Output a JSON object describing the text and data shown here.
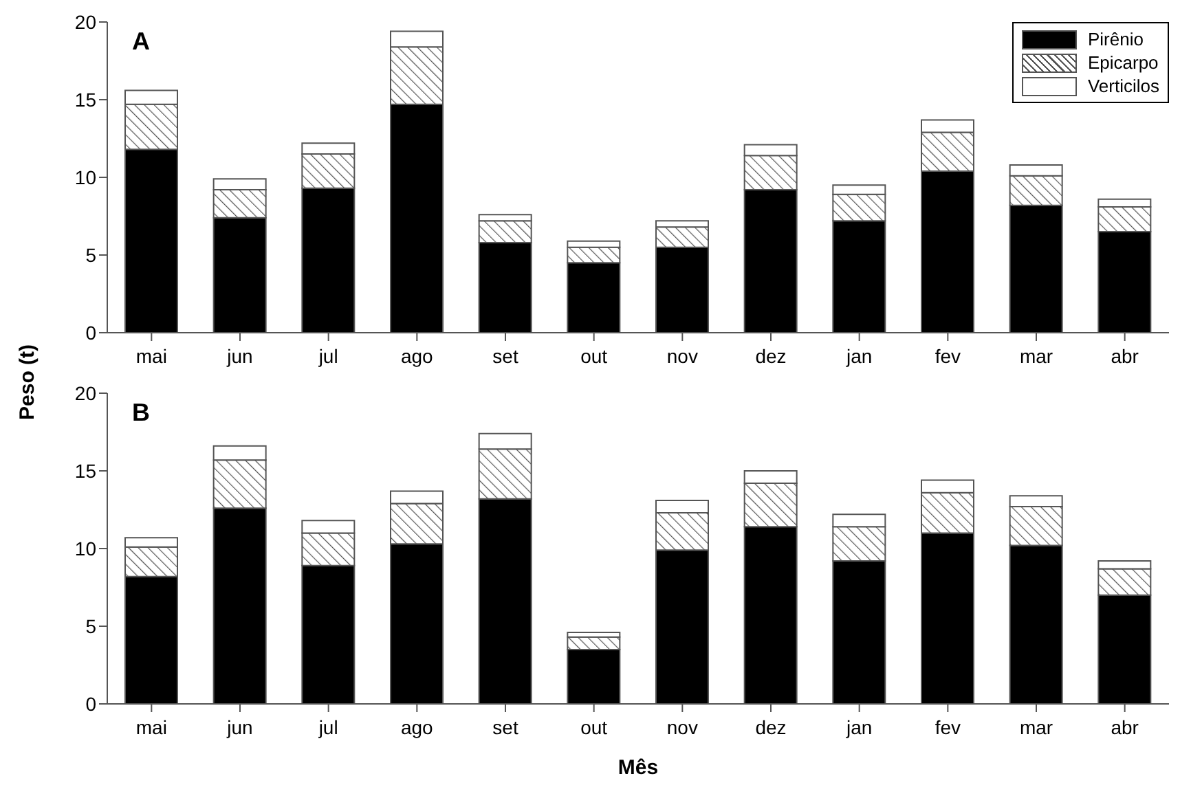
{
  "chart_data": [
    {
      "type": "bar",
      "title": "A",
      "ylabel": "Peso (t)",
      "categories": [
        "mai",
        "jun",
        "jul",
        "ago",
        "set",
        "out",
        "nov",
        "dez",
        "jan",
        "fev",
        "mar",
        "abr"
      ],
      "stacked": true,
      "legend": "top right",
      "ylim": [
        0,
        20
      ],
      "yticks": [
        0,
        5,
        10,
        15,
        20
      ],
      "grid": false,
      "series": [
        {
          "name": "Pirênio",
          "color": "#000000",
          "values": [
            11.8,
            7.4,
            9.3,
            14.7,
            5.8,
            4.5,
            5.5,
            9.2,
            7.2,
            10.4,
            8.2,
            6.5
          ]
        },
        {
          "name": "Epicarpo",
          "color": "#555555",
          "values": [
            2.9,
            1.8,
            2.2,
            3.7,
            1.4,
            1.0,
            1.3,
            2.2,
            1.7,
            2.5,
            1.9,
            1.6
          ]
        },
        {
          "name": "Verticilos",
          "color": "#ffffff",
          "values": [
            0.9,
            0.7,
            0.7,
            1.0,
            0.4,
            0.4,
            0.4,
            0.7,
            0.6,
            0.8,
            0.7,
            0.5
          ]
        }
      ]
    },
    {
      "type": "bar",
      "title": "B",
      "xlabel": "Mês",
      "categories": [
        "mai",
        "jun",
        "jul",
        "ago",
        "set",
        "out",
        "nov",
        "dez",
        "jan",
        "fev",
        "mar",
        "abr"
      ],
      "stacked": true,
      "ylim": [
        0,
        20
      ],
      "yticks": [
        0,
        5,
        10,
        15,
        20
      ],
      "grid": false,
      "series": [
        {
          "color": "#000000",
          "values": [
            8.2,
            12.6,
            8.9,
            10.3,
            13.2,
            3.5,
            9.9,
            11.4,
            9.2,
            11.0,
            10.2,
            7.0
          ]
        },
        {
          "color": "#555555",
          "values": [
            1.9,
            3.1,
            2.1,
            2.6,
            3.2,
            0.8,
            2.4,
            2.8,
            2.2,
            2.6,
            2.5,
            1.7
          ]
        },
        {
          "color": "#ffffff",
          "values": [
            0.6,
            0.9,
            0.8,
            0.8,
            1.0,
            0.3,
            0.8,
            0.8,
            0.8,
            0.8,
            0.7,
            0.5
          ]
        }
      ]
    }
  ]
}
